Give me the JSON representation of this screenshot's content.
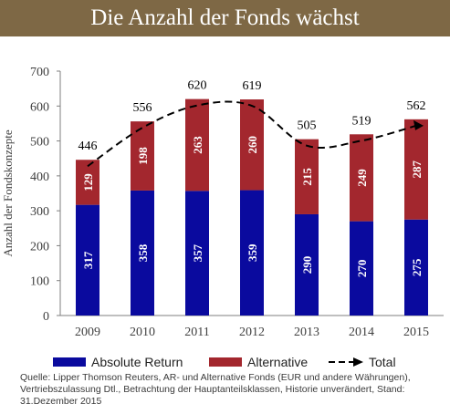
{
  "title": "Die Anzahl der Fonds wächst",
  "chart_data": {
    "type": "bar",
    "stacked": true,
    "categories": [
      "2009",
      "2010",
      "2011",
      "2012",
      "2013",
      "2014",
      "2015"
    ],
    "series": [
      {
        "name": "Absolute Return",
        "color": "#0a0a9e",
        "values": [
          317,
          358,
          357,
          359,
          290,
          270,
          275
        ]
      },
      {
        "name": "Alternative",
        "color": "#a3272e",
        "values": [
          129,
          198,
          263,
          260,
          215,
          249,
          287
        ]
      }
    ],
    "total": {
      "name": "Total",
      "values": [
        446,
        556,
        620,
        619,
        505,
        519,
        562
      ],
      "style": "dashed-line-with-arrow"
    },
    "ylabel": "Anzahl der Fondskonzepte",
    "ylim": [
      0,
      700
    ],
    "yticks": [
      "0",
      "100",
      "200",
      "300",
      "400",
      "500",
      "600",
      "700"
    ],
    "grid": false,
    "legend_position": "bottom"
  },
  "source": "Quelle: Lipper Thomson Reuters, AR- und Alternative Fonds (EUR und andere Währungen), Vertriebszulassung Dtl., Betrachtung der Hauptanteilsklassen, Historie unverändert, Stand: 31.Dezember 2015"
}
